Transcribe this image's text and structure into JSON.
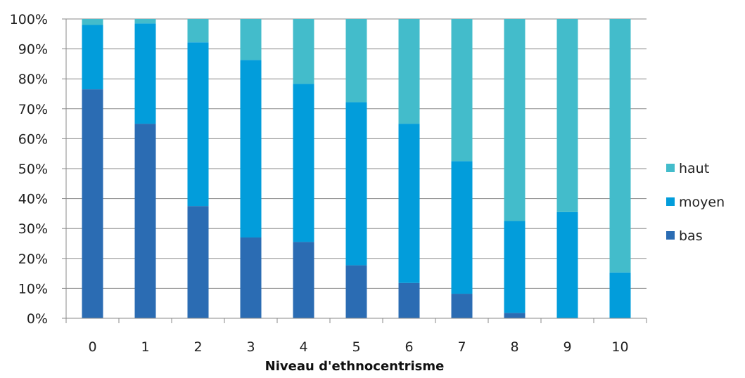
{
  "chart_data": {
    "type": "bar",
    "stacked": true,
    "percent": true,
    "categories": [
      "0",
      "1",
      "2",
      "3",
      "4",
      "5",
      "6",
      "7",
      "8",
      "9",
      "10"
    ],
    "series": [
      {
        "name": "bas",
        "color": "#2b6cb3",
        "values": [
          76.5,
          65,
          37.5,
          27,
          25.5,
          17.7,
          11.8,
          8.2,
          1.8,
          0,
          0
        ]
      },
      {
        "name": "moyen",
        "color": "#029ddb",
        "values": [
          21.5,
          33.5,
          54.7,
          59.3,
          52.8,
          54.5,
          53.2,
          44.3,
          30.7,
          35.5,
          15.3
        ]
      },
      {
        "name": "haut",
        "color": "#43bccb",
        "values": [
          2,
          1.5,
          7.8,
          13.7,
          21.7,
          27.8,
          35,
          47.5,
          67.5,
          64.5,
          84.7
        ]
      }
    ],
    "y_ticks": [
      "0%",
      "10%",
      "20%",
      "30%",
      "40%",
      "50%",
      "60%",
      "70%",
      "80%",
      "90%",
      "100%"
    ],
    "ylim": [
      0,
      100
    ],
    "xlabel": "Niveau d'ethnocentrisme",
    "ylabel": "",
    "title": "",
    "grid": true,
    "legend_position": "right"
  }
}
